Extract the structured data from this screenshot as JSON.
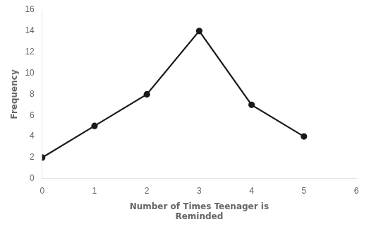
{
  "chart_data": {
    "type": "line",
    "x": [
      0,
      1,
      2,
      3,
      4,
      5
    ],
    "values": [
      2,
      5,
      8,
      14,
      7,
      4
    ],
    "xlabel": "Number of Times Teenager is\nReminded",
    "ylabel": "Frequency",
    "xlim": [
      0,
      6
    ],
    "ylim": [
      0,
      16
    ],
    "xticks": [
      0,
      1,
      2,
      3,
      4,
      5,
      6
    ],
    "yticks": [
      0,
      2,
      4,
      6,
      8,
      10,
      12,
      14,
      16
    ],
    "color": "#1a1a1a",
    "marker": "circle",
    "grid": false
  }
}
